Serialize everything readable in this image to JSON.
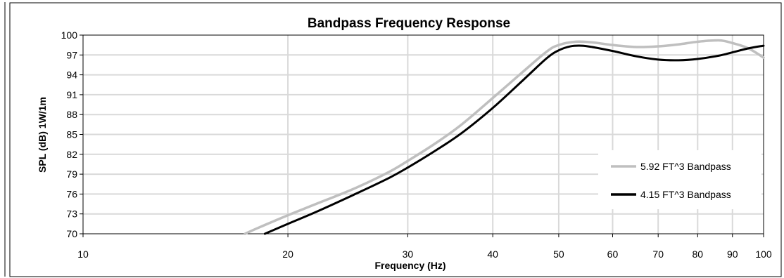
{
  "chart_data": {
    "type": "line",
    "title": "Bandpass Frequency Response",
    "xlabel": "Frequency (Hz)",
    "ylabel": "SPL (dB) 1W/1m",
    "xscale": "log",
    "xlim": [
      10,
      100
    ],
    "ylim": [
      70,
      100
    ],
    "x_ticks": [
      10,
      20,
      30,
      40,
      50,
      60,
      70,
      80,
      90,
      100
    ],
    "x_tick_labels": [
      "10",
      "20",
      "30",
      "40",
      "50",
      "60",
      "70",
      "80",
      "90",
      "100"
    ],
    "y_ticks": [
      70,
      73,
      76,
      79,
      82,
      85,
      88,
      91,
      94,
      97,
      100
    ],
    "y_tick_labels": [
      "70",
      "73",
      "76",
      "79",
      "82",
      "85",
      "88",
      "91",
      "94",
      "97",
      "100"
    ],
    "grid": true,
    "legend_position": "right",
    "series": [
      {
        "name": "5.92 FT^3 Bandpass",
        "color": "#bfbfbf",
        "x": [
          17.3,
          18,
          20,
          22,
          25,
          28,
          30,
          33,
          36,
          40,
          44,
          48,
          50,
          53,
          56,
          60,
          65,
          70,
          75,
          80,
          86,
          90,
          95,
          100
        ],
        "y": [
          70,
          70.8,
          72.8,
          74.5,
          76.8,
          79.2,
          81.0,
          83.7,
          86.5,
          90.5,
          94.2,
          97.5,
          98.5,
          99.0,
          98.9,
          98.5,
          98.2,
          98.3,
          98.6,
          99.0,
          99.2,
          98.8,
          98.0,
          96.6
        ]
      },
      {
        "name": "4.15 FT^3 Bandpass",
        "color": "#000000",
        "x": [
          18.5,
          20,
          22,
          25,
          28,
          30,
          33,
          36,
          40,
          44,
          48,
          50,
          52,
          54,
          56,
          60,
          65,
          70,
          75,
          80,
          86,
          90,
          95,
          100
        ],
        "y": [
          70,
          71.5,
          73.3,
          75.9,
          78.3,
          80.0,
          82.6,
          85.2,
          89.0,
          92.9,
          96.5,
          97.7,
          98.3,
          98.4,
          98.2,
          97.6,
          96.8,
          96.3,
          96.2,
          96.4,
          96.9,
          97.4,
          98.0,
          98.4
        ]
      }
    ]
  }
}
